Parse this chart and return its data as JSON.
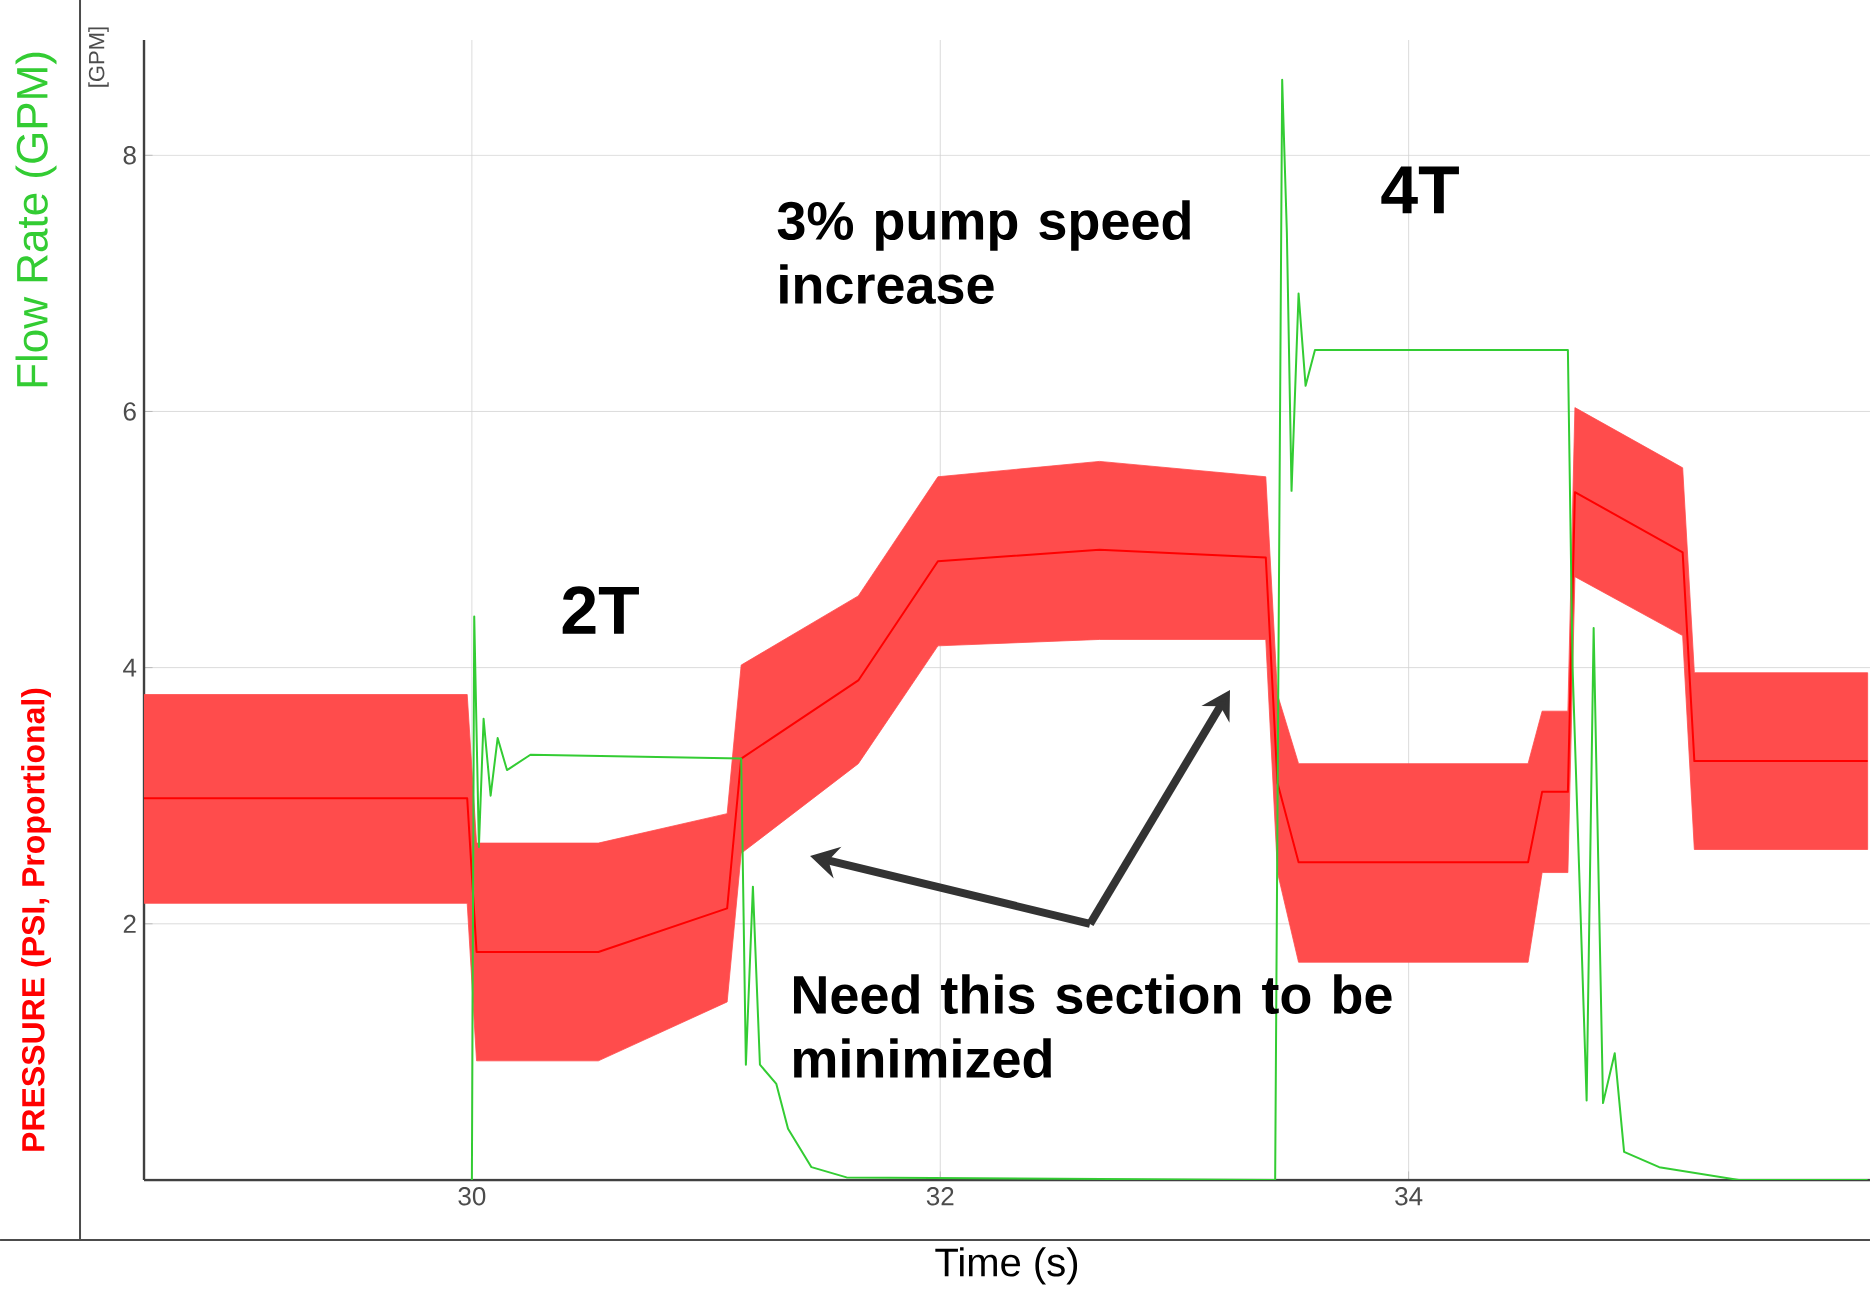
{
  "chart_data": {
    "type": "line",
    "xlabel": "Time (s)",
    "ylabel": "[GPM]",
    "xlim": [
      28.6,
      35.97
    ],
    "ylim": [
      0,
      8.9
    ],
    "xticks": [
      30,
      32,
      34
    ],
    "yticks": [
      2,
      4,
      6,
      8
    ],
    "grid": true,
    "legend": false,
    "marker": "none",
    "line_style": "solid",
    "annotations": [
      "2T",
      "4T",
      "3% pump speed increase",
      "Need this section to be minimized"
    ],
    "series": [
      {
        "name": "Flow  Rate (GPM)",
        "color": "#33cc33",
        "x": [
          30.0,
          30.01,
          30.03,
          30.05,
          30.08,
          30.11,
          30.15,
          30.25,
          31.15,
          31.17,
          31.2,
          31.23,
          31.3,
          31.35,
          31.45,
          31.6,
          33.43,
          33.46,
          33.48,
          33.5,
          33.53,
          33.56,
          33.6,
          34.68,
          34.7,
          34.76,
          34.79,
          34.83,
          34.88,
          34.92,
          35.07,
          35.41,
          35.96
        ],
        "values": [
          0,
          4.4,
          2.6,
          3.6,
          3.0,
          3.45,
          3.2,
          3.32,
          3.29,
          0.9,
          2.29,
          0.9,
          0.75,
          0.4,
          0.1,
          0.02,
          0,
          8.59,
          7.4,
          5.38,
          6.92,
          6.2,
          6.48,
          6.48,
          4.0,
          0.62,
          4.31,
          0.6,
          0.99,
          0.22,
          0.1,
          0,
          0
        ]
      },
      {
        "name": "PRESSURE (PSI, Proportional)",
        "color": "#ff0000",
        "x": [
          28.6,
          29.26,
          29.98,
          30.02,
          30.54,
          31.09,
          31.15,
          31.65,
          31.99,
          32.68,
          33.39,
          33.44,
          33.53,
          34.51,
          34.57,
          34.68,
          34.71,
          35.17,
          35.22,
          35.96
        ],
        "values": [
          2.98,
          2.98,
          2.98,
          1.78,
          1.78,
          2.12,
          3.29,
          3.9,
          4.83,
          4.92,
          4.86,
          3.1,
          2.48,
          2.48,
          3.03,
          3.03,
          5.37,
          4.9,
          3.27,
          3.27
        ],
        "lower": [
          2.16,
          2.16,
          2.16,
          0.93,
          0.93,
          1.39,
          2.55,
          3.25,
          4.17,
          4.22,
          4.22,
          2.4,
          1.7,
          1.7,
          2.4,
          2.4,
          4.71,
          4.25,
          2.58,
          2.58
        ],
        "upper": [
          3.79,
          3.79,
          3.79,
          2.63,
          2.63,
          2.86,
          4.02,
          4.56,
          5.49,
          5.61,
          5.49,
          3.79,
          3.25,
          3.25,
          3.66,
          3.66,
          6.03,
          5.56,
          3.96,
          3.96
        ]
      }
    ]
  }
}
